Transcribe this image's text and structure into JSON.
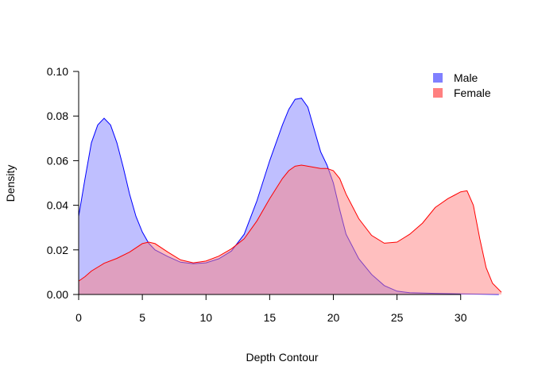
{
  "chart_data": {
    "type": "area",
    "title": "",
    "xlabel": "Depth Contour",
    "ylabel": "Density",
    "xlim": [
      0,
      33.2
    ],
    "ylim": [
      0,
      0.1
    ],
    "x_ticks": [
      0,
      5,
      10,
      15,
      20,
      25,
      30
    ],
    "x_tick_labels": [
      "0",
      "5",
      "10",
      "15",
      "20",
      "25",
      "30"
    ],
    "y_ticks": [
      0,
      0.02,
      0.04,
      0.06,
      0.08,
      0.1
    ],
    "y_tick_labels": [
      "0.00",
      "0.02",
      "0.04",
      "0.06",
      "0.08",
      "0.10"
    ],
    "grid": false,
    "legend_position": "top-right",
    "series": [
      {
        "name": "Male",
        "fill": "#8080ff",
        "stroke": "#0000ff",
        "points": [
          [
            0,
            0.035
          ],
          [
            0.5,
            0.052
          ],
          [
            1,
            0.068
          ],
          [
            1.5,
            0.076
          ],
          [
            2,
            0.079
          ],
          [
            2.5,
            0.076
          ],
          [
            3,
            0.068
          ],
          [
            3.5,
            0.057
          ],
          [
            4,
            0.045
          ],
          [
            4.5,
            0.035
          ],
          [
            5,
            0.028
          ],
          [
            5.5,
            0.023
          ],
          [
            6,
            0.02
          ],
          [
            7,
            0.017
          ],
          [
            8,
            0.0145
          ],
          [
            9,
            0.0138
          ],
          [
            10,
            0.0142
          ],
          [
            11,
            0.016
          ],
          [
            12,
            0.0195
          ],
          [
            13,
            0.027
          ],
          [
            14,
            0.042
          ],
          [
            15,
            0.06
          ],
          [
            16,
            0.076
          ],
          [
            16.5,
            0.083
          ],
          [
            17,
            0.0875
          ],
          [
            17.5,
            0.088
          ],
          [
            18,
            0.084
          ],
          [
            18.5,
            0.074
          ],
          [
            19,
            0.064
          ],
          [
            19.5,
            0.058
          ],
          [
            20,
            0.05
          ],
          [
            20.5,
            0.038
          ],
          [
            21,
            0.027
          ],
          [
            22,
            0.016
          ],
          [
            23,
            0.009
          ],
          [
            24,
            0.004
          ],
          [
            25,
            0.0015
          ],
          [
            26,
            0.0008
          ],
          [
            28,
            0.0005
          ],
          [
            30,
            0.0003
          ],
          [
            32,
            0.0001
          ],
          [
            33,
            0
          ]
        ]
      },
      {
        "name": "Female",
        "fill": "#ff8080",
        "stroke": "#ff0000",
        "points": [
          [
            0,
            0.006
          ],
          [
            0.5,
            0.008
          ],
          [
            1,
            0.0105
          ],
          [
            2,
            0.014
          ],
          [
            3,
            0.0162
          ],
          [
            4,
            0.019
          ],
          [
            5,
            0.0228
          ],
          [
            5.5,
            0.0235
          ],
          [
            6,
            0.0228
          ],
          [
            7,
            0.019
          ],
          [
            8,
            0.0155
          ],
          [
            9,
            0.0142
          ],
          [
            10,
            0.015
          ],
          [
            11,
            0.0172
          ],
          [
            12,
            0.0205
          ],
          [
            13,
            0.025
          ],
          [
            14,
            0.033
          ],
          [
            15,
            0.043
          ],
          [
            16,
            0.052
          ],
          [
            16.5,
            0.0555
          ],
          [
            17,
            0.0575
          ],
          [
            17.5,
            0.058
          ],
          [
            18,
            0.0575
          ],
          [
            19,
            0.0565
          ],
          [
            19.5,
            0.0565
          ],
          [
            20,
            0.0555
          ],
          [
            20.5,
            0.052
          ],
          [
            21,
            0.045
          ],
          [
            22,
            0.034
          ],
          [
            23,
            0.0265
          ],
          [
            24,
            0.023
          ],
          [
            25,
            0.0235
          ],
          [
            26,
            0.027
          ],
          [
            27,
            0.032
          ],
          [
            28,
            0.039
          ],
          [
            29,
            0.043
          ],
          [
            29.5,
            0.0445
          ],
          [
            30,
            0.046
          ],
          [
            30.5,
            0.0465
          ],
          [
            31,
            0.04
          ],
          [
            31.5,
            0.025
          ],
          [
            32,
            0.012
          ],
          [
            32.5,
            0.005
          ],
          [
            33.2,
            0.001
          ]
        ]
      }
    ]
  }
}
